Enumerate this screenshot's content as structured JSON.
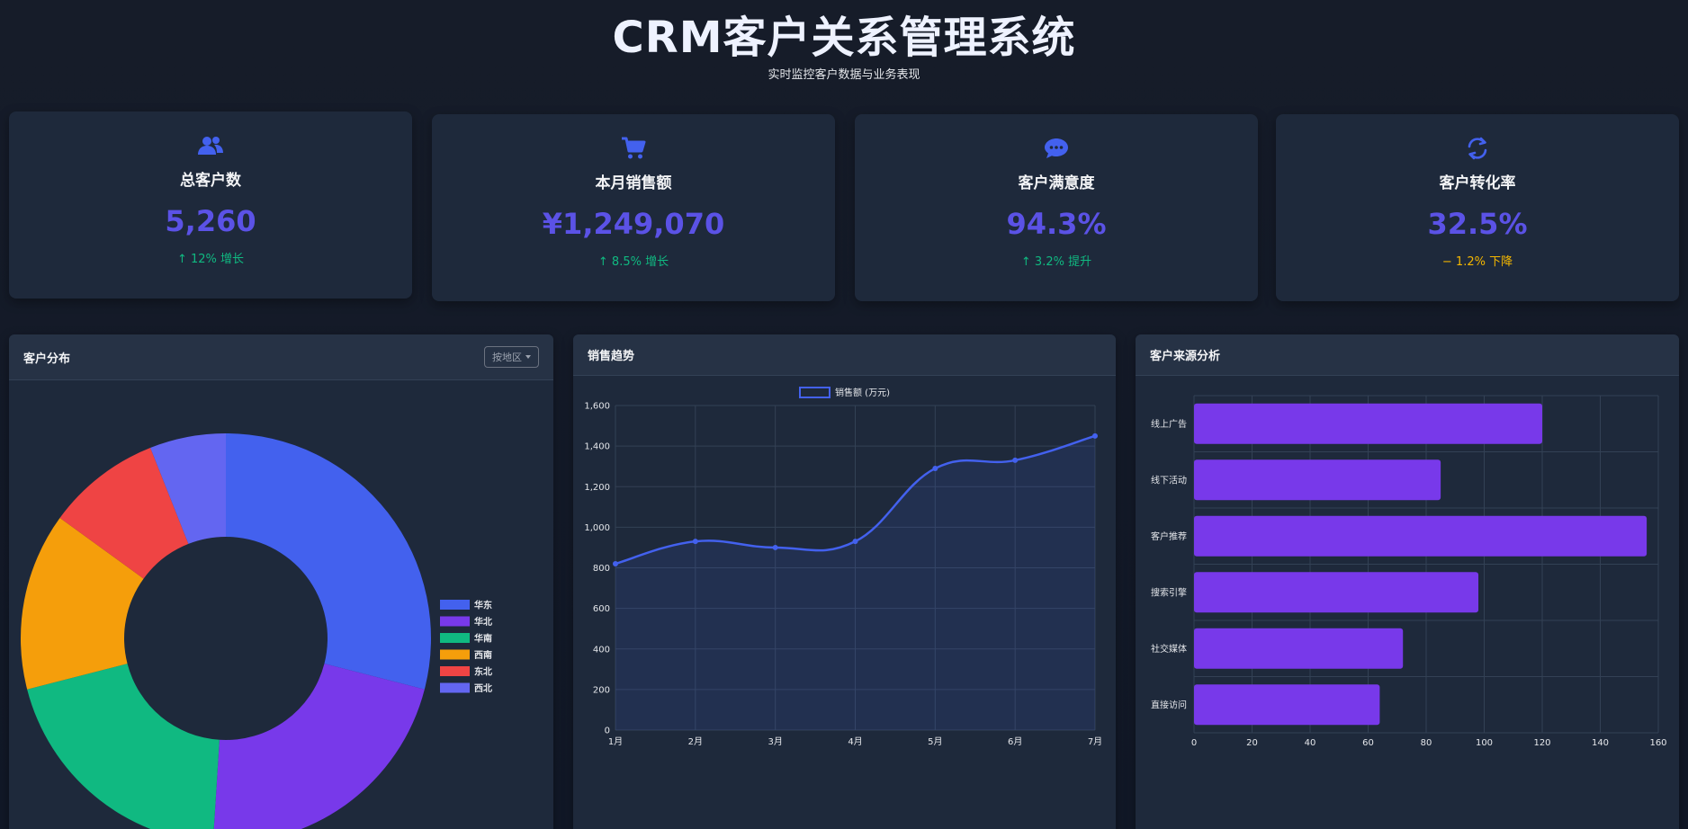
{
  "header": {
    "title": "CRM客户关系管理系统",
    "subtitle": "实时监控客户数据与业务表现"
  },
  "stats": [
    {
      "icon": "users-icon",
      "label": "总客户数",
      "value": "5,260",
      "change": "↑ 12% 增长",
      "trend": "up"
    },
    {
      "icon": "shopping-cart-icon",
      "label": "本月销售额",
      "value": "¥1,249,070",
      "change": "↑ 8.5% 增长",
      "trend": "up"
    },
    {
      "icon": "chat-bubble-icon",
      "label": "客户满意度",
      "value": "94.3%",
      "change": "↑ 3.2% 提升",
      "trend": "up"
    },
    {
      "icon": "refresh-icon",
      "label": "客户转化率",
      "value": "32.5%",
      "change": "− 1.2% 下降",
      "trend": "down"
    }
  ],
  "panels": {
    "distribution": {
      "title": "客户分布",
      "select_label": "按地区"
    },
    "sales": {
      "title": "销售趋势"
    },
    "sources": {
      "title": "客户来源分析"
    }
  },
  "colors": {
    "accent": "#4361ee",
    "value": "#5b52e6",
    "up": "#10b981",
    "down": "#f5b700",
    "bar": "#7839ea"
  },
  "chart_data": [
    {
      "type": "pie",
      "donut": true,
      "categories": [
        "华东",
        "华北",
        "华南",
        "西南",
        "东北",
        "西北"
      ],
      "values": [
        29,
        22,
        20,
        14,
        9,
        6
      ],
      "colors": [
        "#4361ee",
        "#7839ea",
        "#10b981",
        "#f59e0b",
        "#ef4444",
        "#6366f1"
      ],
      "legend_position": "right"
    },
    {
      "type": "line",
      "categories": [
        "1月",
        "2月",
        "3月",
        "4月",
        "5月",
        "6月",
        "7月"
      ],
      "series": [
        {
          "name": "销售额 (万元)",
          "values": [
            820,
            930,
            900,
            930,
            1290,
            1330,
            1450
          ]
        }
      ],
      "ylim": [
        0,
        1600
      ],
      "yticks": [
        "0",
        "200",
        "400",
        "600",
        "800",
        "1,000",
        "1,200",
        "1,400",
        "1,600"
      ],
      "color": "#4361ee",
      "fill": true,
      "grid": true,
      "legend_position": "top"
    },
    {
      "type": "bar",
      "orientation": "horizontal",
      "categories": [
        "线上广告",
        "线下活动",
        "客户推荐",
        "搜索引擎",
        "社交媒体",
        "直接访问"
      ],
      "values": [
        120,
        85,
        156,
        98,
        72,
        64
      ],
      "xlim": [
        0,
        160
      ],
      "xticks": [
        "0",
        "20",
        "40",
        "60",
        "80",
        "100",
        "120",
        "140",
        "160"
      ],
      "color": "#7839ea",
      "grid": true
    }
  ]
}
